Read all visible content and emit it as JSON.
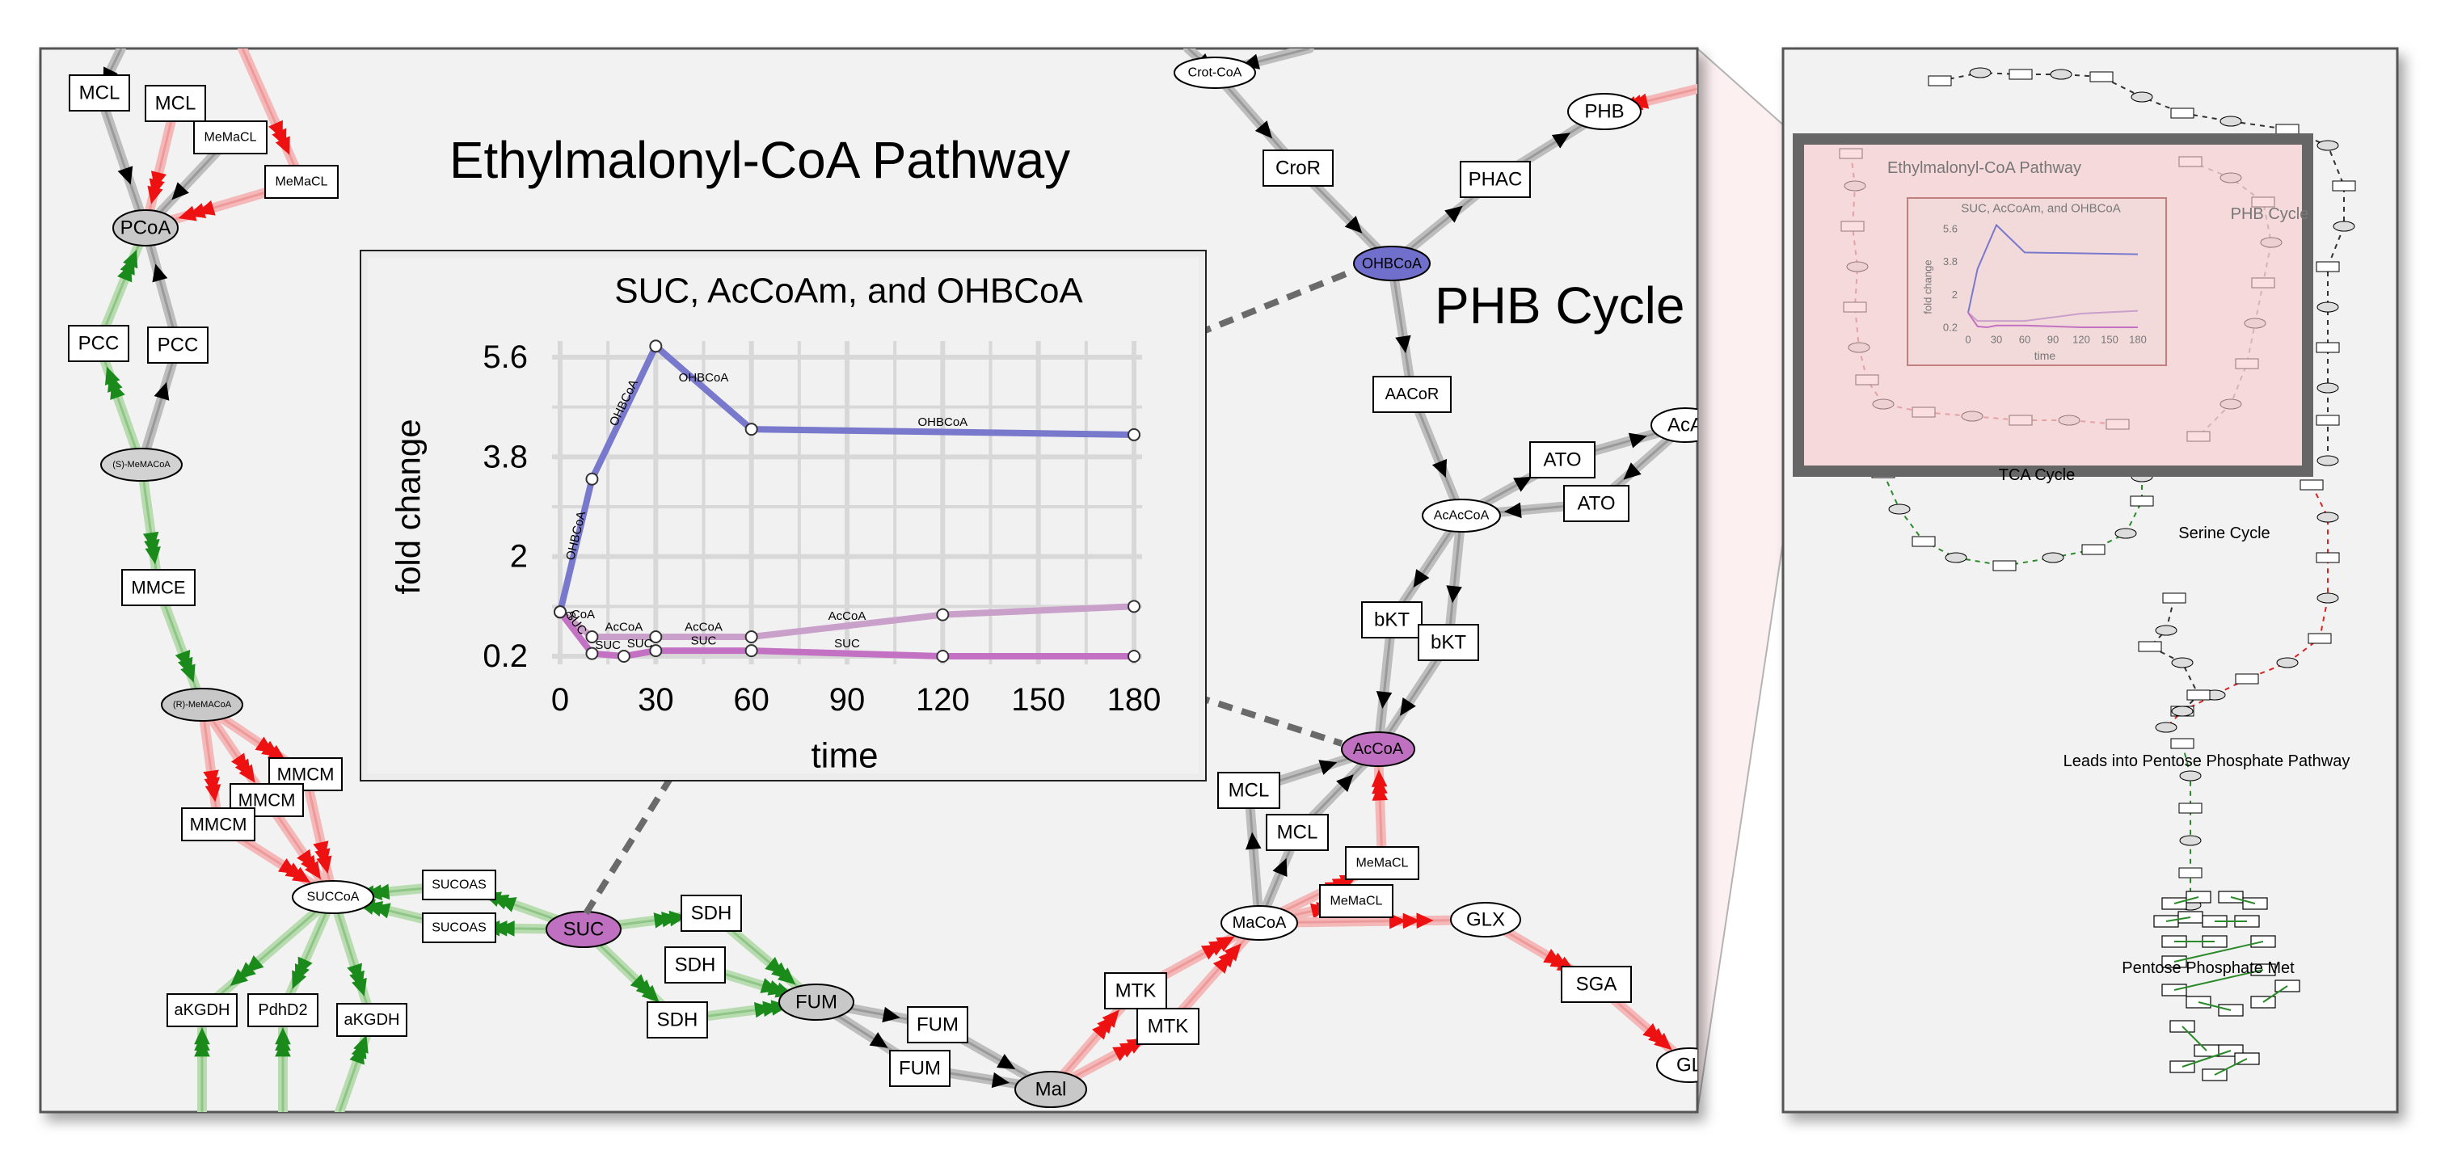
{
  "main_view": {
    "titles": {
      "emc": "Ethylmalonyl-CoA Pathway",
      "phb": "PHB Cycle"
    },
    "metabolites": {
      "crot_coa": "Crot-CoA",
      "phb": "PHB",
      "pcoa": "PCoA",
      "s_mmacoa": "(S)-MeMACoA",
      "r_mmacoa": "(R)-MeMACoA",
      "succoa": "SUCCoA",
      "suc": "SUC",
      "fum": "FUM",
      "mal": "Mal",
      "macoa": "MaCoA",
      "acoa": "AcCoA",
      "ohbcoa": "OHBCoA",
      "acaccoa": "AcAcCoA",
      "aca": "AcA",
      "glx": "GLX",
      "gl": "GL"
    },
    "enzymes": {
      "mcl_a": "MCL",
      "mcl_b": "MCL",
      "memacl_a": "MeMaCL",
      "memacl_b": "MeMaCL",
      "pcc_a": "PCC",
      "pcc_b": "PCC",
      "mmce": "MMCE",
      "mmcm_a": "MMCM",
      "mmcm_b": "MMCM",
      "mmcm_c": "MMCM",
      "sucoas_a": "SUCOAS",
      "sucoas_b": "SUCOAS",
      "akgdh_a": "aKGDH",
      "pdhd2": "PdhD2",
      "akgdh_b": "aKGDH",
      "sdh_a": "SDH",
      "sdh_b": "SDH",
      "sdh_c": "SDH",
      "fum_a": "FUM",
      "fum_b": "FUM",
      "mtk_a": "MTK",
      "mtk_b": "MTK",
      "mcl_c": "MCL",
      "mcl_d": "MCL",
      "memacl_c": "MeMaCL",
      "memacl_d": "MeMaCL",
      "sga": "SGA",
      "cror": "CroR",
      "phac": "PHAC",
      "aacor": "AACoR",
      "ato_a": "ATO",
      "ato_b": "ATO",
      "bkt_a": "bKT",
      "bkt_b": "bKT"
    }
  },
  "chart_data": {
    "type": "line",
    "title": "SUC, AcCoAm, and OHBCoA",
    "xlabel": "time",
    "ylabel": "fold change",
    "xlim": [
      0,
      180
    ],
    "ylim": [
      0.2,
      5.6
    ],
    "x_ticks": [
      "0",
      "30",
      "60",
      "90",
      "120",
      "150",
      "180"
    ],
    "y_ticks": [
      "5.6",
      "3.8",
      "2",
      "0.2"
    ],
    "grid": true,
    "colors": {
      "OHBCoA": "#7878cc",
      "AcCoA": "#c9a0c9",
      "SUC": "#c372c3"
    },
    "series": [
      {
        "name": "OHBCoA",
        "x": [
          0,
          10,
          30,
          60,
          180
        ],
        "y": [
          1.0,
          3.4,
          5.8,
          4.3,
          4.2
        ]
      },
      {
        "name": "AcCoA",
        "x": [
          0,
          10,
          30,
          60,
          120,
          180
        ],
        "y": [
          1.0,
          0.55,
          0.55,
          0.55,
          0.95,
          1.1
        ]
      },
      {
        "name": "SUC",
        "x": [
          0,
          10,
          20,
          30,
          60,
          120,
          180
        ],
        "y": [
          1.0,
          0.25,
          0.2,
          0.3,
          0.3,
          0.2,
          0.2
        ]
      }
    ],
    "point_labels": {
      "OHBCoA": [
        "OHBCoA",
        "OHBCoA",
        "OHBCoA",
        "OHBCoA"
      ],
      "AcCoA": [
        "AcCoA",
        "AcCoA",
        "AcCoA",
        "AcCoA"
      ],
      "SUC": [
        "SUC",
        "SUC",
        "SUC",
        "SUC",
        "SUC"
      ]
    }
  },
  "overview": {
    "labels": {
      "emc": "Ethylmalonyl-CoA Pathway",
      "phb": "PHB Cycle",
      "tca": "TCA Cycle",
      "serine": "Serine Cycle",
      "ppp_lead": "Leads into Pentose Phosphate Pathway",
      "ppp": "Pentose Phosphate Met"
    },
    "chart": {
      "title": "SUC, AcCoAm, and OHBCoA",
      "ylabel": "fold change",
      "xlabel": "time",
      "y_ticks": [
        "5.6",
        "3.8",
        "2",
        "0.2"
      ],
      "x_ticks": [
        "0",
        "30",
        "60",
        "90",
        "120",
        "150",
        "180"
      ]
    }
  }
}
